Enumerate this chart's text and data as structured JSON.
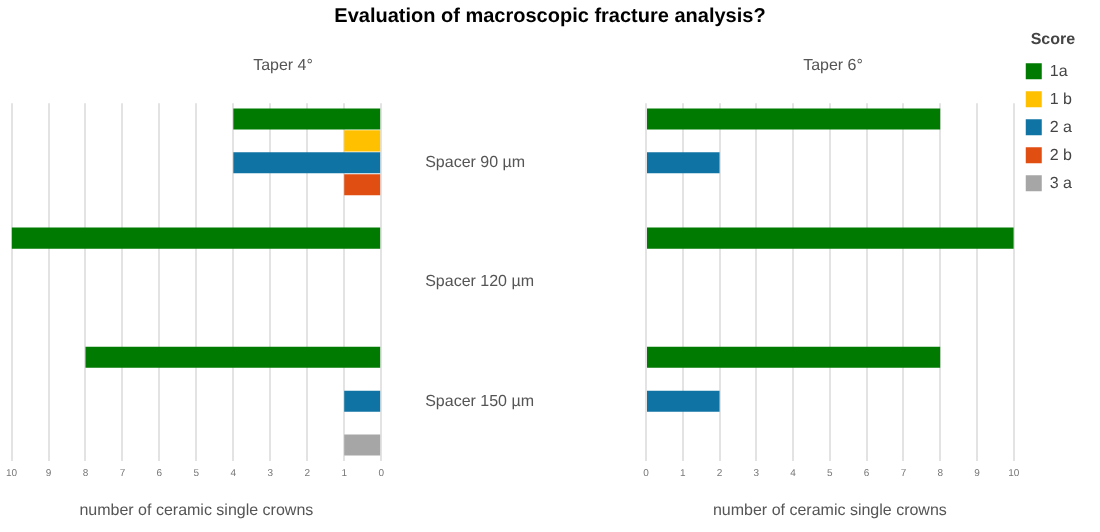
{
  "chart_data": [
    {
      "type": "bar",
      "title": "Evaluation of macroscopic fracture analysis?",
      "subtitle": "Taper 4°",
      "orientation": "horizontal",
      "categories": [
        "Spacer 90 µm",
        "Spacer 120 µm",
        "Spacer 150 µm"
      ],
      "series": [
        {
          "color": "#007a00",
          "values": [
            4,
            10,
            8
          ]
        },
        {
          "color": "#ffc000",
          "values": [
            1,
            null,
            null
          ]
        },
        {
          "color": "#0f73a3",
          "values": [
            4,
            null,
            1
          ]
        },
        {
          "color": "#e04e12",
          "values": [
            1,
            null,
            null
          ]
        },
        {
          "color": "#a6a6a6",
          "values": [
            null,
            null,
            1
          ]
        }
      ],
      "xlabel": "number of ceramic single crowns",
      "xlim": [
        10,
        0
      ],
      "xticks": [
        10,
        9,
        8,
        7,
        6,
        5,
        4,
        3,
        2,
        1,
        0
      ],
      "grid": "x"
    },
    {
      "type": "bar",
      "subtitle": "Taper 6°",
      "orientation": "horizontal",
      "categories": [
        null,
        null,
        null
      ],
      "series": [
        {
          "name": "1a",
          "color": "#007a00",
          "values": [
            8,
            10,
            8
          ]
        },
        {
          "name": "1 b",
          "color": "#ffc000",
          "values": [
            null,
            null,
            null
          ]
        },
        {
          "name": "2 a",
          "color": "#0f73a3",
          "values": [
            2,
            null,
            2
          ]
        },
        {
          "name": "2 b",
          "color": "#e04e12",
          "values": [
            null,
            null,
            null
          ]
        },
        {
          "name": "3 a",
          "color": "#a6a6a6",
          "values": [
            null,
            null,
            null
          ]
        }
      ],
      "xlabel": "number of ceramic single crowns",
      "xlim": [
        0,
        10
      ],
      "xticks": [
        0,
        1,
        2,
        3,
        4,
        5,
        6,
        7,
        8,
        9,
        10
      ],
      "grid": "x",
      "legend": "right",
      "legend_title": "Score"
    }
  ]
}
